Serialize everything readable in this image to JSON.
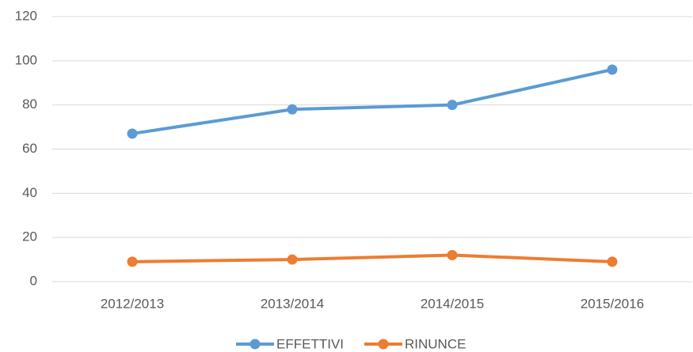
{
  "chart_data": {
    "type": "line",
    "categories": [
      "2012/2013",
      "2013/2014",
      "2014/2015",
      "2015/2016"
    ],
    "series": [
      {
        "name": "EFFETTIVI",
        "color": "#5b9bd5",
        "values": [
          67,
          78,
          80,
          96
        ]
      },
      {
        "name": "RINUNCE",
        "color": "#ed7d31",
        "values": [
          9,
          10,
          12,
          9
        ]
      }
    ],
    "ylim": [
      0,
      120
    ],
    "yticks": [
      0,
      20,
      40,
      60,
      80,
      100,
      120
    ],
    "grid": true,
    "legend": "bottom"
  }
}
